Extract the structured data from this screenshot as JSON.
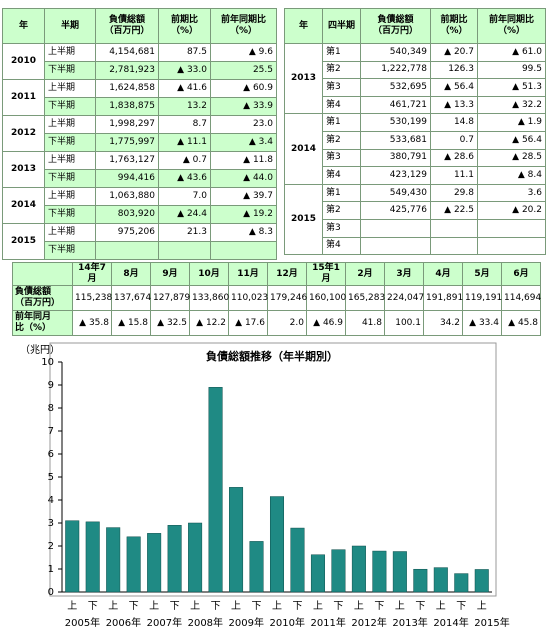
{
  "tables": [
    {
      "header": [
        "年",
        "半期",
        "負債総額\n（百万円）",
        "前期比\n（%）",
        "前年同期比\n（%）"
      ],
      "groups": [
        {
          "year": "2010",
          "rows": [
            [
              "上半期",
              "4,154,681",
              "87.5",
              "▲ 9.6"
            ],
            [
              "下半期",
              "2,781,923",
              "▲ 33.0",
              "25.5"
            ]
          ]
        },
        {
          "year": "2011",
          "rows": [
            [
              "上半期",
              "1,624,858",
              "▲ 41.6",
              "▲ 60.9"
            ],
            [
              "下半期",
              "1,838,875",
              "13.2",
              "▲ 33.9"
            ]
          ]
        },
        {
          "year": "2012",
          "rows": [
            [
              "上半期",
              "1,998,297",
              "8.7",
              "23.0"
            ],
            [
              "下半期",
              "1,775,997",
              "▲ 11.1",
              "▲ 3.4"
            ]
          ]
        },
        {
          "year": "2013",
          "rows": [
            [
              "上半期",
              "1,763,127",
              "▲ 0.7",
              "▲ 11.8"
            ],
            [
              "下半期",
              "994,416",
              "▲ 43.6",
              "▲ 44.0"
            ]
          ]
        },
        {
          "year": "2014",
          "rows": [
            [
              "上半期",
              "1,063,880",
              "7.0",
              "▲ 39.7"
            ],
            [
              "下半期",
              "803,920",
              "▲ 24.4",
              "▲ 19.2"
            ]
          ]
        },
        {
          "year": "2015",
          "rows": [
            [
              "上半期",
              "975,206",
              "21.3",
              "▲ 8.3"
            ],
            [
              "下半期"
            ]
          ]
        }
      ]
    },
    {
      "header": [
        "年",
        "四半期",
        "負債総額\n（百万円）",
        "前期比\n（%）",
        "前年同期比\n（%）"
      ],
      "groups": [
        {
          "year": "2013",
          "rows": [
            [
              "第1",
              "540,349",
              "▲ 20.7",
              "▲ 61.0"
            ],
            [
              "第2",
              "1,222,778",
              "126.3",
              "99.5"
            ],
            [
              "第3",
              "532,695",
              "▲ 56.4",
              "▲ 51.3"
            ],
            [
              "第4",
              "461,721",
              "▲ 13.3",
              "▲ 32.2"
            ]
          ]
        },
        {
          "year": "2014",
          "rows": [
            [
              "第1",
              "530,199",
              "14.8",
              "▲ 1.9"
            ],
            [
              "第2",
              "533,681",
              "0.7",
              "▲ 56.4"
            ],
            [
              "第3",
              "380,791",
              "▲ 28.6",
              "▲ 28.5"
            ],
            [
              "第4",
              "423,129",
              "11.1",
              "▲ 8.4"
            ]
          ]
        },
        {
          "year": "2015",
          "rows": [
            [
              "第1",
              "549,430",
              "29.8",
              "3.6"
            ],
            [
              "第2",
              "425,776",
              "▲ 22.5",
              "▲ 20.2"
            ],
            [
              "第3"
            ],
            [
              "第4"
            ]
          ]
        }
      ]
    }
  ],
  "monthly": {
    "header": [
      "14年7月",
      "8月",
      "9月",
      "10月",
      "11月",
      "12月",
      "15年1月",
      "2月",
      "3月",
      "4月",
      "5月",
      "6月"
    ],
    "rows": [
      {
        "label": "負債総額\n（百万円）",
        "values": [
          "115,238",
          "137,674",
          "127,879",
          "133,860",
          "110,023",
          "179,246",
          "160,100",
          "165,283",
          "224,047",
          "191,891",
          "119,191",
          "114,694"
        ]
      },
      {
        "label": "前年同月\n比（%）",
        "values": [
          "▲ 35.8",
          "▲ 15.8",
          "▲ 32.5",
          "▲ 12.2",
          "▲ 17.6",
          "2.0",
          "▲ 46.9",
          "41.8",
          "100.1",
          "34.2",
          "▲ 33.4",
          "▲ 45.8"
        ]
      }
    ]
  },
  "chart_data": {
    "type": "bar",
    "title": "負債総額推移（年半期別）",
    "y_unit": "（兆円）",
    "color": "#1f8a84",
    "categories": [
      "上",
      "下",
      "上",
      "下",
      "上",
      "下",
      "上",
      "下",
      "上",
      "下",
      "上",
      "下",
      "上",
      "下",
      "上",
      "下",
      "上",
      "下",
      "上",
      "下",
      "上"
    ],
    "year_labels": [
      "2005年",
      "2006年",
      "2007年",
      "2008年",
      "2009年",
      "2010年",
      "2011年",
      "2012年",
      "2013年",
      "2014年",
      "2015年"
    ],
    "values": [
      3.1,
      3.05,
      2.8,
      2.4,
      2.55,
      2.9,
      3.0,
      8.9,
      4.55,
      2.2,
      4.15,
      2.78,
      1.62,
      1.84,
      2.0,
      1.78,
      1.76,
      0.99,
      1.06,
      0.8,
      0.98
    ],
    "ylim": [
      0,
      10
    ],
    "yticks": [
      0,
      1,
      2,
      3,
      4,
      5,
      6,
      7,
      8,
      9,
      10
    ]
  }
}
